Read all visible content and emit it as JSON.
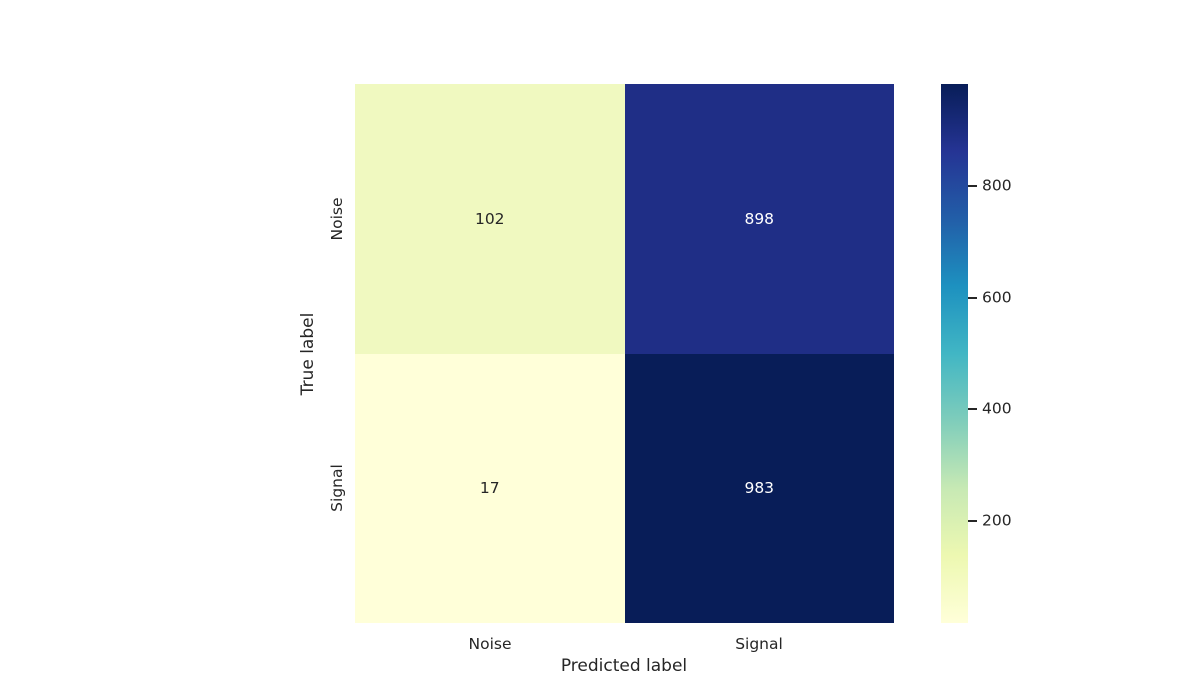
{
  "figure": {
    "xlabel": "Predicted label",
    "ylabel": "True label",
    "xticks": [
      "Noise",
      "Signal"
    ],
    "yticks": [
      "Noise",
      "Signal"
    ]
  },
  "cells": [
    {
      "value": "102",
      "bg": "#f0f9c0",
      "fg": "#262626"
    },
    {
      "value": "898",
      "bg": "#1f2e86",
      "fg": "#ffffff"
    },
    {
      "value": "17",
      "bg": "#ffffd9",
      "fg": "#262626"
    },
    {
      "value": "983",
      "bg": "#081d58",
      "fg": "#ffffff"
    }
  ],
  "colorbar": {
    "vmin": 17,
    "vmax": 983,
    "ticks": [
      200,
      400,
      600,
      800
    ],
    "gradient_bottom_to_top": [
      "#ffffd9",
      "#edf8b1",
      "#c7e9b4",
      "#7fcdbb",
      "#41b6c4",
      "#1d91c0",
      "#225ea8",
      "#253494",
      "#081d58"
    ]
  },
  "chart_data": {
    "type": "heatmap",
    "title": "",
    "xlabel": "Predicted label",
    "ylabel": "True label",
    "x_categories": [
      "Noise",
      "Signal"
    ],
    "y_categories": [
      "Noise",
      "Signal"
    ],
    "matrix": [
      [
        102,
        898
      ],
      [
        17,
        983
      ]
    ],
    "colormap": "YlGnBu",
    "vmin": 17,
    "vmax": 983,
    "colorbar_ticks": [
      200,
      400,
      600,
      800
    ],
    "legend_position": "right-colorbar",
    "grid": false,
    "annotations": true
  }
}
